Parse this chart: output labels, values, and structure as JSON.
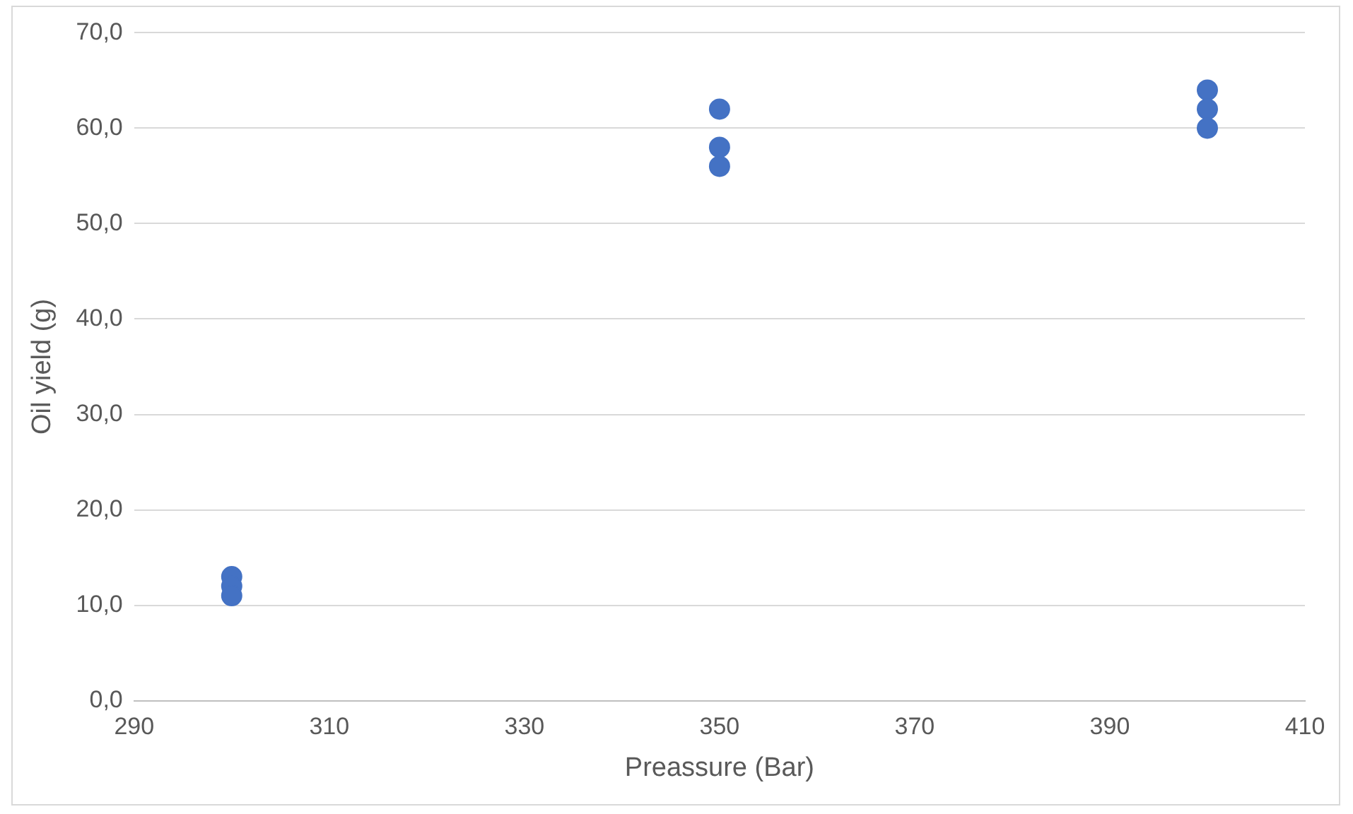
{
  "chart_data": {
    "type": "scatter",
    "xlabel": "Preassure (Bar)",
    "ylabel": "Oil yield (g)",
    "x": [
      300,
      300,
      300,
      350,
      350,
      350,
      400,
      400,
      400
    ],
    "series": [
      {
        "color": "#4472c4",
        "values": [
          13.0,
          12.0,
          11.0,
          62.0,
          58.0,
          56.0,
          64.0,
          62.0,
          60.0
        ]
      }
    ],
    "xlim": [
      290,
      410
    ],
    "xticks": [
      290,
      310,
      330,
      350,
      370,
      390,
      410
    ],
    "ylim": [
      0,
      70
    ],
    "yticks": [
      {
        "value": 0,
        "label": "0,0"
      },
      {
        "value": 10,
        "label": "10,0"
      },
      {
        "value": 20,
        "label": "20,0"
      },
      {
        "value": 30,
        "label": "30,0"
      },
      {
        "value": 40,
        "label": "40,0"
      },
      {
        "value": 50,
        "label": "50,0"
      },
      {
        "value": 60,
        "label": "60,0"
      },
      {
        "value": 70,
        "label": "70,0"
      }
    ],
    "grid": "y",
    "legend": false,
    "marker": "circle"
  }
}
